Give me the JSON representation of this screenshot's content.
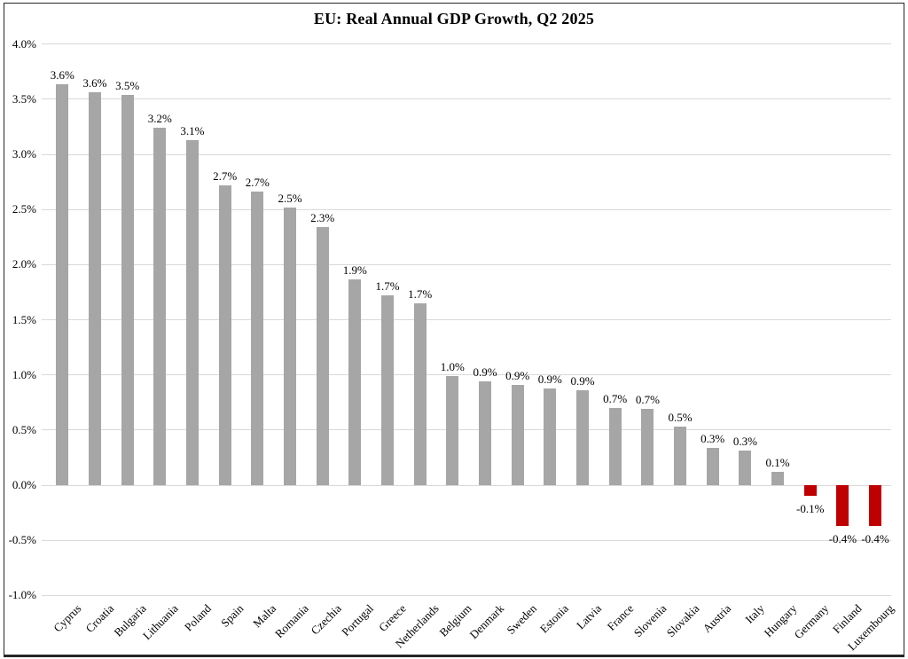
{
  "chart_data": {
    "type": "bar",
    "title": "EU: Real Annual GDP Growth, Q2 2025",
    "categories": [
      "Cyprus",
      "Croatia",
      "Bulgaria",
      "Lithuania",
      "Poland",
      "Spain",
      "Malta",
      "Romania",
      "Czechia",
      "Portugal",
      "Greece",
      "Netherlands",
      "Belgium",
      "Denmark",
      "Sweden",
      "Estonia",
      "Latvia",
      "France",
      "Slovenia",
      "Slovakia",
      "Austria",
      "Italy",
      "Hungary",
      "Germany",
      "Finland",
      "Luxembourg"
    ],
    "values": [
      3.6,
      3.6,
      3.5,
      3.2,
      3.1,
      2.7,
      2.7,
      2.5,
      2.3,
      1.9,
      1.7,
      1.7,
      1.0,
      0.9,
      0.9,
      0.9,
      0.9,
      0.7,
      0.7,
      0.5,
      0.3,
      0.3,
      0.1,
      -0.1,
      -0.4,
      -0.4
    ],
    "value_labels": [
      "3.6%",
      "3.6%",
      "3.5%",
      "3.2%",
      "3.1%",
      "2.7%",
      "2.7%",
      "2.5%",
      "2.3%",
      "1.9%",
      "1.7%",
      "1.7%",
      "1.0%",
      "0.9%",
      "0.9%",
      "0.9%",
      "0.9%",
      "0.7%",
      "0.7%",
      "0.5%",
      "0.3%",
      "0.3%",
      "0.1%",
      "-0.1%",
      "-0.4%",
      "-0.4%"
    ],
    "plot_values": [
      3.64,
      3.56,
      3.54,
      3.24,
      3.13,
      2.72,
      2.66,
      2.52,
      2.34,
      1.87,
      1.72,
      1.65,
      0.99,
      0.94,
      0.91,
      0.88,
      0.86,
      0.7,
      0.69,
      0.53,
      0.34,
      0.31,
      0.12,
      -0.1,
      -0.37,
      -0.37
    ],
    "ytick_labels": [
      "4.0%",
      "3.5%",
      "3.0%",
      "2.5%",
      "2.0%",
      "1.5%",
      "1.0%",
      "0.5%",
      "0.0%",
      "-0.5%",
      "-1.0%"
    ],
    "ylim": [
      -1.0,
      4.0
    ],
    "xlabel": "",
    "ylabel": "",
    "grid": true,
    "legend": "none",
    "colors": {
      "bar_positive": "#A6A6A6",
      "bar_negative": "#C00000",
      "gridline": "#D9D9D9",
      "text": "#000000"
    }
  }
}
